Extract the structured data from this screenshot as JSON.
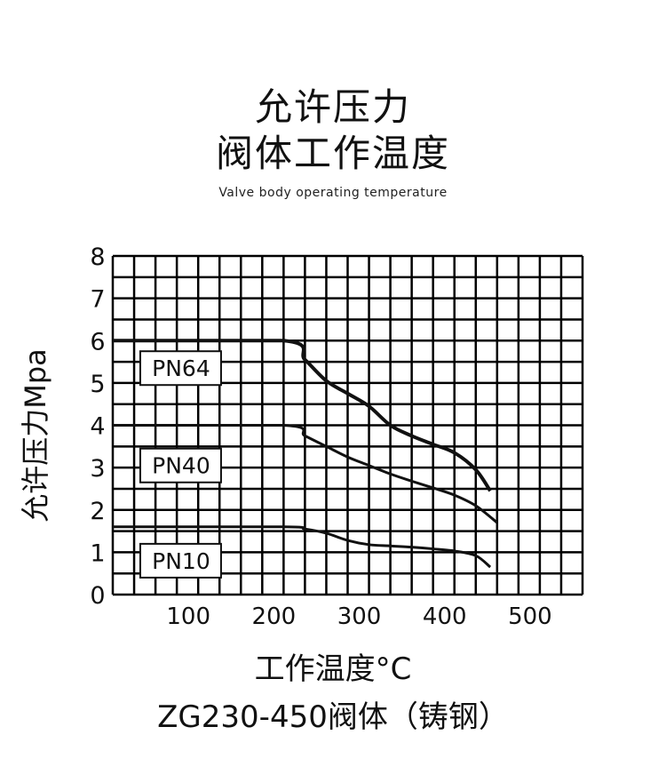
{
  "header": {
    "title_line1": "允许压力",
    "title_line2": "阀体工作温度",
    "subtitle": "Valve body operating temperature"
  },
  "axes": {
    "ylabel": "允许压力Mpa",
    "xlabel": "工作温度°C",
    "footer": "ZG230-450阀体（铸钢）"
  },
  "colors": {
    "grid": "#000000",
    "curve": "#111111",
    "background": "#ffffff"
  },
  "chart_data": {
    "type": "line",
    "title": "允许压力 阀体工作温度",
    "subtitle": "Valve body operating temperature",
    "xlabel": "工作温度°C",
    "ylabel": "允许压力Mpa",
    "caption": "ZG230-450阀体（铸钢）",
    "xlim": [
      0,
      550
    ],
    "ylim": [
      0,
      8
    ],
    "x_ticks": [
      100,
      200,
      300,
      400,
      500
    ],
    "y_ticks": [
      0,
      1,
      2,
      3,
      4,
      5,
      6,
      7,
      8
    ],
    "grid": true,
    "grid_x_step": 25,
    "grid_y_step": 0.5,
    "legend_position": "inline labels",
    "series": [
      {
        "name": "PN64",
        "label_pos": [
          80,
          5.35
        ],
        "stroke_width": 4,
        "x": [
          0,
          200,
          225,
          250,
          275,
          300,
          325,
          350,
          375,
          400,
          425,
          442
        ],
        "y": [
          6.0,
          6.0,
          5.55,
          5.05,
          4.75,
          4.45,
          4.0,
          3.75,
          3.55,
          3.35,
          2.95,
          2.45
        ]
      },
      {
        "name": "PN40",
        "label_pos": [
          80,
          3.05
        ],
        "stroke_width": 3,
        "x": [
          0,
          200,
          225,
          250,
          275,
          300,
          325,
          350,
          375,
          400,
          425,
          450
        ],
        "y": [
          4.0,
          4.0,
          3.75,
          3.5,
          3.25,
          3.05,
          2.85,
          2.68,
          2.52,
          2.35,
          2.1,
          1.7
        ]
      },
      {
        "name": "PN10",
        "label_pos": [
          80,
          0.8
        ],
        "stroke_width": 3,
        "x": [
          0,
          200,
          225,
          250,
          275,
          300,
          325,
          350,
          375,
          400,
          425,
          442
        ],
        "y": [
          1.6,
          1.6,
          1.55,
          1.45,
          1.28,
          1.18,
          1.15,
          1.12,
          1.08,
          1.03,
          0.92,
          0.65
        ]
      }
    ]
  }
}
